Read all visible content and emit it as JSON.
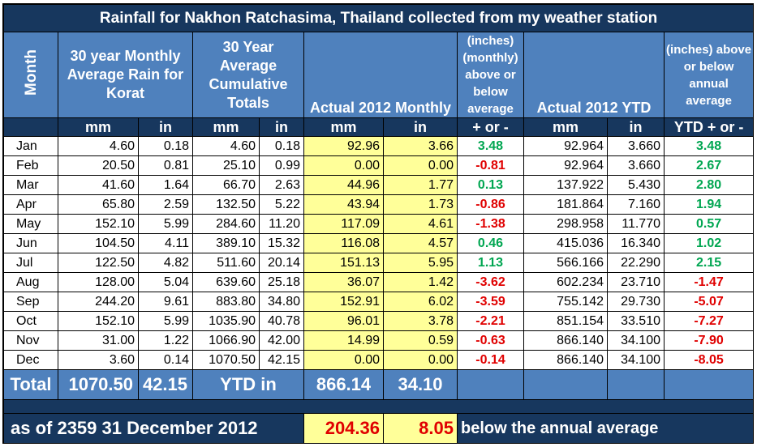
{
  "title": "Rainfall for Nakhon Ratchasima, Thailand collected from my weather station",
  "headers": {
    "month": "Month",
    "avg": "30 year Monthly Average Rain for Korat",
    "cum": "30 Year Average Cumulative Totals",
    "actual": "Actual 2012 Monthly",
    "monthly_diff": "(inches) (monthly) above or below average",
    "ytd": "Actual 2012 YTD",
    "annual_diff": "(inches) above or below annual average"
  },
  "units": [
    "mm",
    "in",
    "mm",
    "in",
    "mm",
    "in",
    "+ or -",
    "mm",
    "in",
    "YTD + or -"
  ],
  "rows": [
    {
      "month": "Jan",
      "avg_mm": "4.60",
      "avg_in": "0.18",
      "cum_mm": "4.60",
      "cum_in": "0.18",
      "act_mm": "92.96",
      "act_in": "3.66",
      "diff": "3.48",
      "ytd_mm": "92.964",
      "ytd_in": "3.660",
      "ytd_diff": "3.48"
    },
    {
      "month": "Feb",
      "avg_mm": "20.50",
      "avg_in": "0.81",
      "cum_mm": "25.10",
      "cum_in": "0.99",
      "act_mm": "0.00",
      "act_in": "0.00",
      "diff": "-0.81",
      "ytd_mm": "92.964",
      "ytd_in": "3.660",
      "ytd_diff": "2.67"
    },
    {
      "month": "Mar",
      "avg_mm": "41.60",
      "avg_in": "1.64",
      "cum_mm": "66.70",
      "cum_in": "2.63",
      "act_mm": "44.96",
      "act_in": "1.77",
      "diff": "0.13",
      "ytd_mm": "137.922",
      "ytd_in": "5.430",
      "ytd_diff": "2.80"
    },
    {
      "month": "Apr",
      "avg_mm": "65.80",
      "avg_in": "2.59",
      "cum_mm": "132.50",
      "cum_in": "5.22",
      "act_mm": "43.94",
      "act_in": "1.73",
      "diff": "-0.86",
      "ytd_mm": "181.864",
      "ytd_in": "7.160",
      "ytd_diff": "1.94"
    },
    {
      "month": "May",
      "avg_mm": "152.10",
      "avg_in": "5.99",
      "cum_mm": "284.60",
      "cum_in": "11.20",
      "act_mm": "117.09",
      "act_in": "4.61",
      "diff": "-1.38",
      "ytd_mm": "298.958",
      "ytd_in": "11.770",
      "ytd_diff": "0.57"
    },
    {
      "month": "Jun",
      "avg_mm": "104.50",
      "avg_in": "4.11",
      "cum_mm": "389.10",
      "cum_in": "15.32",
      "act_mm": "116.08",
      "act_in": "4.57",
      "diff": "0.46",
      "ytd_mm": "415.036",
      "ytd_in": "16.340",
      "ytd_diff": "1.02"
    },
    {
      "month": "Jul",
      "avg_mm": "122.50",
      "avg_in": "4.82",
      "cum_mm": "511.60",
      "cum_in": "20.14",
      "act_mm": "151.13",
      "act_in": "5.95",
      "diff": "1.13",
      "ytd_mm": "566.166",
      "ytd_in": "22.290",
      "ytd_diff": "2.15"
    },
    {
      "month": "Aug",
      "avg_mm": "128.00",
      "avg_in": "5.04",
      "cum_mm": "639.60",
      "cum_in": "25.18",
      "act_mm": "36.07",
      "act_in": "1.42",
      "diff": "-3.62",
      "ytd_mm": "602.234",
      "ytd_in": "23.710",
      "ytd_diff": "-1.47"
    },
    {
      "month": "Sep",
      "avg_mm": "244.20",
      "avg_in": "9.61",
      "cum_mm": "883.80",
      "cum_in": "34.80",
      "act_mm": "152.91",
      "act_in": "6.02",
      "diff": "-3.59",
      "ytd_mm": "755.142",
      "ytd_in": "29.730",
      "ytd_diff": "-5.07"
    },
    {
      "month": "Oct",
      "avg_mm": "152.10",
      "avg_in": "5.99",
      "cum_mm": "1035.90",
      "cum_in": "40.78",
      "act_mm": "96.01",
      "act_in": "3.78",
      "diff": "-2.21",
      "ytd_mm": "851.154",
      "ytd_in": "33.510",
      "ytd_diff": "-7.27"
    },
    {
      "month": "Nov",
      "avg_mm": "31.00",
      "avg_in": "1.22",
      "cum_mm": "1066.90",
      "cum_in": "42.00",
      "act_mm": "14.99",
      "act_in": "0.59",
      "diff": "-0.63",
      "ytd_mm": "866.140",
      "ytd_in": "34.100",
      "ytd_diff": "-7.90"
    },
    {
      "month": "Dec",
      "avg_mm": "3.60",
      "avg_in": "0.14",
      "cum_mm": "1070.50",
      "cum_in": "42.15",
      "act_mm": "0.00",
      "act_in": "0.00",
      "diff": "-0.14",
      "ytd_mm": "866.140",
      "ytd_in": "34.100",
      "ytd_diff": "-8.05"
    }
  ],
  "total": {
    "label": "Total",
    "avg_mm": "1070.50",
    "avg_in": "42.15",
    "ytd_label": "YTD in",
    "act_mm": "866.14",
    "act_in": "34.10"
  },
  "footer": {
    "date": "as of 2359 31 December 2012",
    "mm": "204.36",
    "in": "8.05",
    "text": "below the annual average"
  },
  "colors": {
    "dark_blue": "#17375E",
    "mid_blue": "#4F81BD",
    "highlight": "#FFFF99",
    "positive": "#00A651",
    "negative": "#E00000"
  }
}
